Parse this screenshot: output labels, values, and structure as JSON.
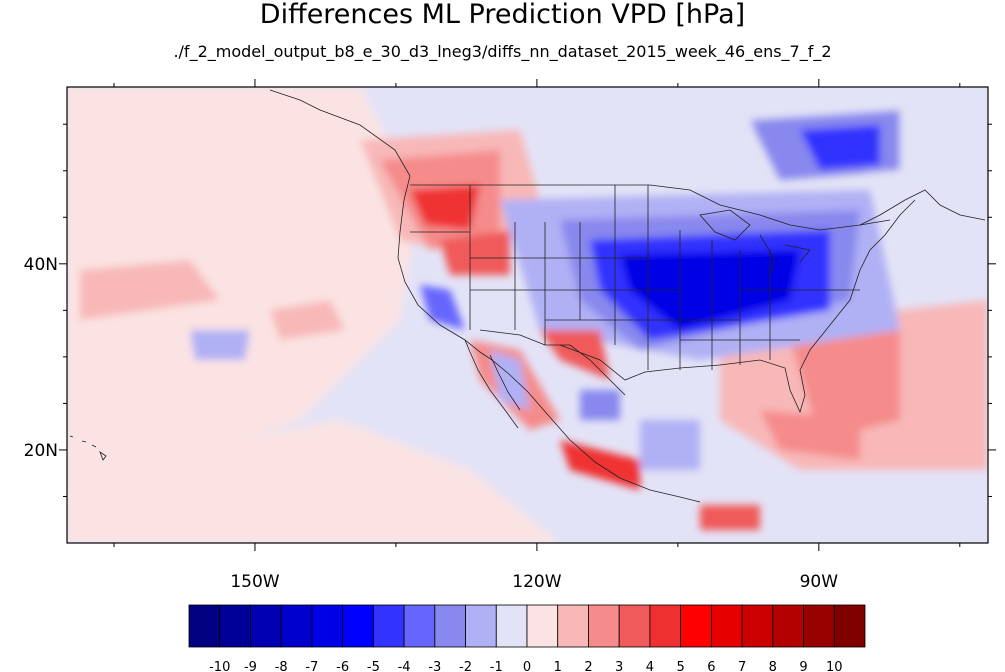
{
  "title": "Differences ML Prediction VPD [hPa]",
  "subtitle": "./f_2_model_output_b8_e_30_d3_lneg3/diffs_nn_dataset_2015_week_46_ens_7_f_2",
  "map": {
    "lon_range": [
      -170,
      -72
    ],
    "lat_range": [
      10,
      59
    ],
    "x_tick_labels": [
      {
        "lon": -150,
        "label": "150W"
      },
      {
        "lon": -120,
        "label": "120W"
      },
      {
        "lon": -90,
        "label": "90W"
      }
    ],
    "y_tick_labels": [
      {
        "lat": 40,
        "label": "40N"
      },
      {
        "lat": 20,
        "label": "20N"
      }
    ],
    "background_level": -1
  },
  "colorbar": {
    "labels": [
      "-10",
      "-9",
      "-8",
      "-7",
      "-6",
      "-5",
      "-4",
      "-3",
      "-2",
      "-1",
      "0",
      "1",
      "2",
      "3",
      "4",
      "5",
      "6",
      "7",
      "8",
      "9",
      "10"
    ],
    "colors": [
      "#000080",
      "#000099",
      "#0000b3",
      "#0000cc",
      "#0000e6",
      "#0000ff",
      "#3333ff",
      "#6666ff",
      "#8888ee",
      "#b0b0f5",
      "#e3e3f7",
      "#fbe3e3",
      "#f8b8b8",
      "#f58b8b",
      "#f05a5a",
      "#ef3030",
      "#ff0000",
      "#e60000",
      "#cc0000",
      "#b30000",
      "#990000",
      "#800000"
    ]
  }
}
